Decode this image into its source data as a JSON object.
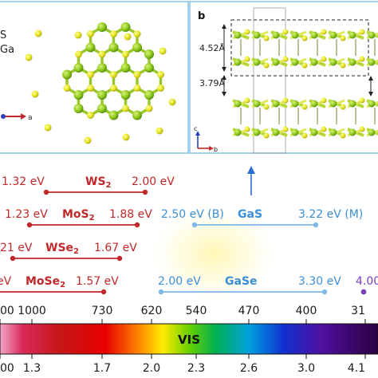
{
  "panel_a": {
    "legend_s": "S",
    "legend_ga": "Ga",
    "axis_a": "a"
  },
  "panel_b": {
    "letter": "b",
    "d1": "4.52Å",
    "d2": "3.79Å",
    "axis_c": "c",
    "axis_b": "b"
  },
  "materials": [
    {
      "name_main": "WS",
      "sub": "2",
      "left": "1.32 eV",
      "right": "2.00 eV"
    },
    {
      "name_main": "MoS",
      "sub": "2",
      "left": "1.23 eV",
      "right": "1.88 eV"
    },
    {
      "name_main": "WSe",
      "sub": "2",
      "left": "21 eV",
      "right": "1.67 eV"
    },
    {
      "name_main": "MoSe",
      "sub": "2",
      "left": "eV",
      "right": "1.57 eV"
    }
  ],
  "gas": {
    "name": "GaS",
    "left": "2.50 eV (B)",
    "right": "3.22 eV (M)"
  },
  "gase": {
    "name": "GaSe",
    "left": "2.00 eV",
    "right": "3.30 eV",
    "far": "4.00"
  },
  "wavelength_ticks": [
    "00",
    "1000",
    "730",
    "620",
    "540",
    "470",
    "400",
    "31"
  ],
  "energy_ticks": [
    "00",
    "1.3",
    "1.7",
    "2.0",
    "2.3",
    "2.6",
    "3.0",
    "4.1"
  ],
  "spectrum_label": "VIS",
  "colors": {
    "red": "#c0282a",
    "blue": "#3a8fd6",
    "light_blue": "#7fb8e6",
    "purple": "#7a3fbf",
    "frame": "#8ec6e8"
  }
}
